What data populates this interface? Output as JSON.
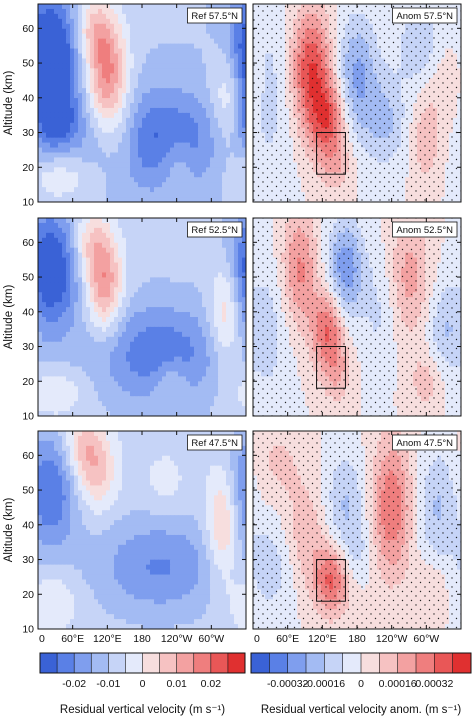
{
  "figure": {
    "ylabel": "Altitude (km)",
    "x_tick_labels": [
      "0",
      "60°E",
      "120°E",
      "180",
      "120°W",
      "60°W"
    ],
    "y_tick_labels": [
      "10",
      "20",
      "30",
      "40",
      "50",
      "60"
    ]
  },
  "colorbars": [
    {
      "label": "Residual vertical velocity (m s⁻¹)",
      "tick_labels": [
        "-0.02",
        "-0.01",
        "0",
        "0.01",
        "0.02"
      ],
      "colors": [
        "#3a62d6",
        "#5a80e6",
        "#7f9eee",
        "#a3bbf3",
        "#c6d4f7",
        "#e4eafb",
        "#f7dede",
        "#f6c2c2",
        "#f3a1a1",
        "#ef7e7e",
        "#e95757",
        "#e03030"
      ]
    },
    {
      "label": "Residual vertical velocity anom. (m s⁻¹)",
      "tick_labels": [
        "-0.00032",
        "-0.00016",
        "0",
        "0.00016",
        "0.00032"
      ],
      "colors": [
        "#3a62d6",
        "#5a80e6",
        "#7f9eee",
        "#a3bbf3",
        "#c6d4f7",
        "#e4eafb",
        "#f7dede",
        "#f6c2c2",
        "#f3a1a1",
        "#ef7e7e",
        "#e95757",
        "#e03030"
      ]
    }
  ],
  "chart_data": [
    {
      "type": "heatmap",
      "label": "Ref 57.5°N",
      "xlim": [
        0,
        360
      ],
      "ylim": [
        10,
        67
      ],
      "x_ticks": [
        0,
        60,
        120,
        180,
        240,
        300
      ],
      "y_ticks": [
        10,
        20,
        30,
        40,
        50,
        60
      ],
      "background": -0.008,
      "features": [
        {
          "lon": 20,
          "alt": 52,
          "sx": 35,
          "sy": 12,
          "value": -0.024
        },
        {
          "lon": 30,
          "alt": 33,
          "sx": 30,
          "sy": 6,
          "value": -0.012
        },
        {
          "lon": 210,
          "alt": 28,
          "sx": 80,
          "sy": 10,
          "value": -0.014
        },
        {
          "lon": 120,
          "alt": 46,
          "sx": 25,
          "sy": 11,
          "value": 0.022
        },
        {
          "lon": 95,
          "alt": 60,
          "sx": 25,
          "sy": 7,
          "value": 0.012
        },
        {
          "lon": 145,
          "alt": 28,
          "sx": 25,
          "sy": 8,
          "value": 0.006
        },
        {
          "lon": 40,
          "alt": 17,
          "sx": 45,
          "sy": 5,
          "value": 0.007
        },
        {
          "lon": 240,
          "alt": 22,
          "sx": 20,
          "sy": 6,
          "value": 0.006
        },
        {
          "lon": 330,
          "alt": 40,
          "sx": 22,
          "sy": 11,
          "value": 0.012
        }
      ]
    },
    {
      "type": "heatmap",
      "label": "Anom 57.5°N",
      "xlim": [
        0,
        360
      ],
      "ylim": [
        10,
        67
      ],
      "x_ticks": [
        0,
        60,
        120,
        180,
        240,
        300
      ],
      "y_ticks": [
        10,
        20,
        30,
        40,
        50,
        60
      ],
      "background": 0,
      "box": {
        "lon": [
          110,
          160
        ],
        "alt": [
          18,
          30
        ]
      },
      "features": [
        {
          "lon": 100,
          "alt": 48,
          "sx": 25,
          "sy": 12,
          "value": 0.00034
        },
        {
          "lon": 130,
          "alt": 33,
          "sx": 22,
          "sy": 8,
          "value": 0.00028
        },
        {
          "lon": 145,
          "alt": 20,
          "sx": 20,
          "sy": 5,
          "value": 0.0001
        },
        {
          "lon": 180,
          "alt": 46,
          "sx": 25,
          "sy": 12,
          "value": -0.00022
        },
        {
          "lon": 25,
          "alt": 42,
          "sx": 35,
          "sy": 18,
          "value": -0.0001
        },
        {
          "lon": 230,
          "alt": 33,
          "sx": 25,
          "sy": 9,
          "value": -0.00014
        },
        {
          "lon": 290,
          "alt": 55,
          "sx": 30,
          "sy": 9,
          "value": -0.00012
        },
        {
          "lon": 300,
          "alt": 28,
          "sx": 18,
          "sy": 9,
          "value": 0.00012
        },
        {
          "lon": 340,
          "alt": 45,
          "sx": 25,
          "sy": 10,
          "value": 0.0001
        }
      ]
    },
    {
      "type": "heatmap",
      "label": "Ref 52.5°N",
      "xlim": [
        0,
        360
      ],
      "ylim": [
        10,
        67
      ],
      "x_ticks": [
        0,
        60,
        120,
        180,
        240,
        300
      ],
      "y_ticks": [
        10,
        20,
        30,
        40,
        50,
        60
      ],
      "background": -0.007,
      "features": [
        {
          "lon": 20,
          "alt": 52,
          "sx": 35,
          "sy": 12,
          "value": -0.02
        },
        {
          "lon": 210,
          "alt": 28,
          "sx": 80,
          "sy": 10,
          "value": -0.013
        },
        {
          "lon": 115,
          "alt": 48,
          "sx": 22,
          "sy": 10,
          "value": 0.019
        },
        {
          "lon": 90,
          "alt": 60,
          "sx": 22,
          "sy": 7,
          "value": 0.01
        },
        {
          "lon": 30,
          "alt": 17,
          "sx": 40,
          "sy": 5,
          "value": 0.007
        },
        {
          "lon": 230,
          "alt": 20,
          "sx": 20,
          "sy": 5,
          "value": 0.006
        },
        {
          "lon": 325,
          "alt": 40,
          "sx": 20,
          "sy": 11,
          "value": 0.013
        }
      ]
    },
    {
      "type": "heatmap",
      "label": "Anom 52.5°N",
      "xlim": [
        0,
        360
      ],
      "ylim": [
        10,
        67
      ],
      "x_ticks": [
        0,
        60,
        120,
        180,
        240,
        300
      ],
      "y_ticks": [
        10,
        20,
        30,
        40,
        50,
        60
      ],
      "background": 0,
      "box": {
        "lon": [
          110,
          160
        ],
        "alt": [
          18,
          30
        ]
      },
      "features": [
        {
          "lon": 80,
          "alt": 52,
          "sx": 22,
          "sy": 12,
          "value": 0.00022
        },
        {
          "lon": 130,
          "alt": 35,
          "sx": 20,
          "sy": 8,
          "value": 0.00028
        },
        {
          "lon": 145,
          "alt": 22,
          "sx": 18,
          "sy": 6,
          "value": 0.00012
        },
        {
          "lon": 160,
          "alt": 52,
          "sx": 22,
          "sy": 10,
          "value": -0.00026
        },
        {
          "lon": 25,
          "alt": 35,
          "sx": 30,
          "sy": 15,
          "value": -0.0001
        },
        {
          "lon": 220,
          "alt": 40,
          "sx": 22,
          "sy": 12,
          "value": -8e-05
        },
        {
          "lon": 270,
          "alt": 50,
          "sx": 25,
          "sy": 12,
          "value": 0.00016
        },
        {
          "lon": 330,
          "alt": 35,
          "sx": 20,
          "sy": 9,
          "value": -0.00012
        },
        {
          "lon": 300,
          "alt": 20,
          "sx": 22,
          "sy": 6,
          "value": 0.0001
        }
      ]
    },
    {
      "type": "heatmap",
      "label": "Ref 47.5°N",
      "xlim": [
        0,
        360
      ],
      "ylim": [
        10,
        67
      ],
      "x_ticks": [
        0,
        60,
        120,
        180,
        240,
        300
      ],
      "y_ticks": [
        10,
        20,
        30,
        40,
        50,
        60
      ],
      "background": -0.006,
      "features": [
        {
          "lon": 20,
          "alt": 50,
          "sx": 35,
          "sy": 12,
          "value": -0.015
        },
        {
          "lon": 210,
          "alt": 28,
          "sx": 80,
          "sy": 10,
          "value": -0.011
        },
        {
          "lon": 100,
          "alt": 55,
          "sx": 25,
          "sy": 8,
          "value": 0.012
        },
        {
          "lon": 75,
          "alt": 63,
          "sx": 25,
          "sy": 6,
          "value": 0.01
        },
        {
          "lon": 20,
          "alt": 18,
          "sx": 35,
          "sy": 6,
          "value": 0.007
        },
        {
          "lon": 220,
          "alt": 52,
          "sx": 25,
          "sy": 6,
          "value": 0.004
        },
        {
          "lon": 320,
          "alt": 40,
          "sx": 20,
          "sy": 11,
          "value": 0.014
        }
      ]
    },
    {
      "type": "heatmap",
      "label": "Anom 47.5°N",
      "xlim": [
        0,
        360
      ],
      "ylim": [
        10,
        67
      ],
      "x_ticks": [
        0,
        60,
        120,
        180,
        240,
        300
      ],
      "y_ticks": [
        10,
        20,
        30,
        40,
        50,
        60
      ],
      "background": 0,
      "box": {
        "lon": [
          110,
          160
        ],
        "alt": [
          18,
          30
        ]
      },
      "features": [
        {
          "lon": 135,
          "alt": 24,
          "sx": 22,
          "sy": 7,
          "value": 0.00028
        },
        {
          "lon": 90,
          "alt": 38,
          "sx": 25,
          "sy": 10,
          "value": 0.00012
        },
        {
          "lon": 45,
          "alt": 58,
          "sx": 30,
          "sy": 8,
          "value": 8e-05
        },
        {
          "lon": 240,
          "alt": 45,
          "sx": 25,
          "sy": 14,
          "value": 0.00026
        },
        {
          "lon": 160,
          "alt": 46,
          "sx": 25,
          "sy": 10,
          "value": -0.00014
        },
        {
          "lon": 320,
          "alt": 45,
          "sx": 25,
          "sy": 12,
          "value": -0.00014
        },
        {
          "lon": 180,
          "alt": 32,
          "sx": 20,
          "sy": 6,
          "value": -8e-05
        },
        {
          "lon": 30,
          "alt": 28,
          "sx": 30,
          "sy": 10,
          "value": -0.0001
        },
        {
          "lon": 310,
          "alt": 22,
          "sx": 20,
          "sy": 6,
          "value": 8e-05
        }
      ]
    }
  ]
}
